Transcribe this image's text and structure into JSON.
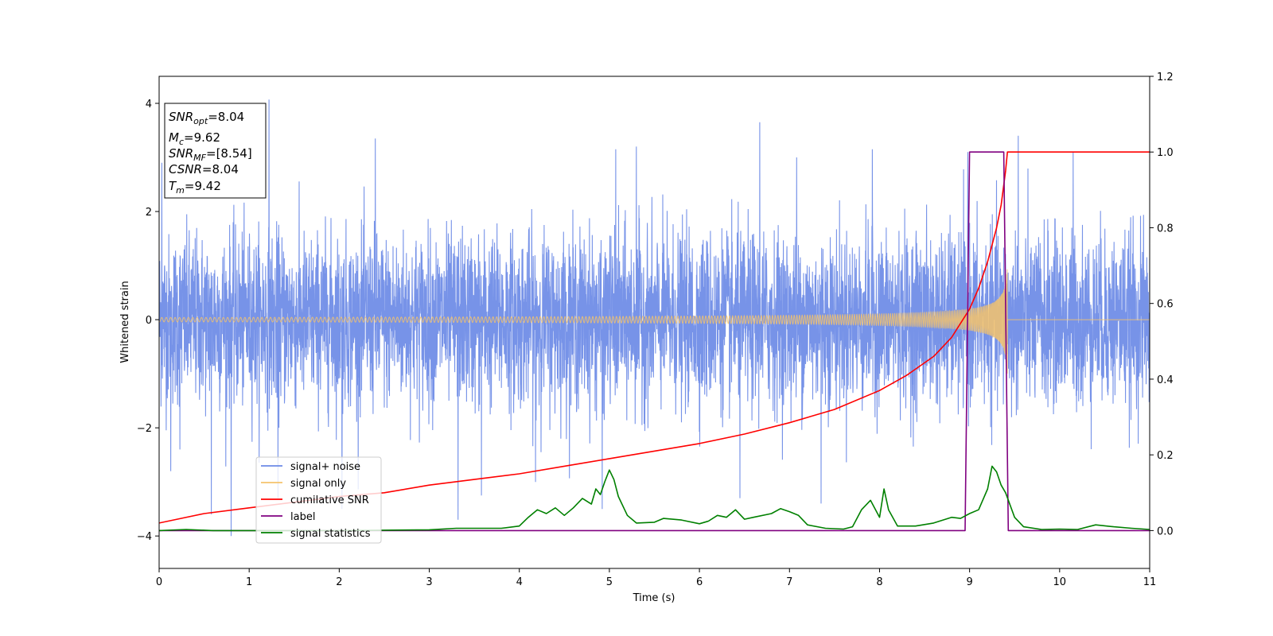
{
  "chart_data": {
    "type": "line",
    "xlabel": "Time (s)",
    "ylabel": "Whitened strain",
    "xlim": [
      0,
      11
    ],
    "ylim": [
      -4.6,
      4.5
    ],
    "y2lim": [
      -0.1,
      1.2
    ],
    "x_ticks": [
      0,
      1,
      2,
      3,
      4,
      5,
      6,
      7,
      8,
      9,
      10,
      11
    ],
    "y_ticks": [
      -4,
      -2,
      0,
      2,
      4
    ],
    "y2_ticks": [
      0.0,
      0.2,
      0.4,
      0.6,
      0.8,
      1.0,
      1.2
    ],
    "grid": false,
    "legend_position": "lower-left",
    "info_box": {
      "lines": [
        {
          "base": "SNR",
          "sub": "opt",
          "rest": "=8.04"
        },
        {
          "base": "M",
          "sub": "c",
          "rest": "=9.62"
        },
        {
          "base": "SNR",
          "sub": "MF",
          "rest": "=[8.54]"
        },
        {
          "base": "CSNR",
          "sub": "",
          "rest": "=8.04"
        },
        {
          "base": "T",
          "sub": "m",
          "rest": "=9.42"
        }
      ]
    },
    "series": [
      {
        "name": "signal+ noise",
        "axis": "left",
        "color": "#6b8ae6",
        "description_values": {
          "noise_std": 0.78,
          "extrema": {
            "max": 4.07,
            "min": -4.0
          }
        },
        "spikes": [
          [
            0.03,
            2.9
          ],
          [
            0.13,
            -2.8
          ],
          [
            0.23,
            -2.4
          ],
          [
            0.58,
            -3.6
          ],
          [
            0.8,
            -4.0
          ],
          [
            1.22,
            4.07
          ],
          [
            1.32,
            -3.3
          ],
          [
            2.03,
            -3.5
          ],
          [
            2.4,
            3.35
          ],
          [
            3.32,
            -3.7
          ],
          [
            3.58,
            -3.25
          ],
          [
            4.18,
            -3.0
          ],
          [
            4.92,
            -3.5
          ],
          [
            5.07,
            3.15
          ],
          [
            5.3,
            3.2
          ],
          [
            6.45,
            -3.3
          ],
          [
            6.67,
            3.65
          ],
          [
            7.08,
            3.0
          ],
          [
            7.35,
            -3.4
          ],
          [
            7.92,
            3.15
          ],
          [
            8.98,
            3.1
          ],
          [
            9.54,
            3.4
          ],
          [
            10.15,
            3.1
          ]
        ]
      },
      {
        "name": "signal only",
        "axis": "left",
        "color": "#f5c36b",
        "description_values": {
          "amplitude_start": 0.02,
          "amplitude_at_9": 0.2,
          "amplitude_peak": 1.0,
          "merger_time": 9.42
        }
      },
      {
        "name": "cumilative SNR",
        "axis": "right",
        "color": "#ff0000",
        "x": [
          0,
          0.5,
          1,
          1.5,
          2,
          2.5,
          3,
          3.5,
          4,
          4.5,
          5,
          5.5,
          6,
          6.5,
          7,
          7.5,
          8,
          8.3,
          8.6,
          8.8,
          9.0,
          9.1,
          9.2,
          9.3,
          9.35,
          9.4,
          9.42,
          11
        ],
        "values": [
          0.02,
          0.045,
          0.06,
          0.075,
          0.09,
          0.1,
          0.12,
          0.135,
          0.15,
          0.17,
          0.19,
          0.21,
          0.23,
          0.255,
          0.285,
          0.32,
          0.37,
          0.41,
          0.46,
          0.51,
          0.585,
          0.64,
          0.71,
          0.8,
          0.86,
          0.95,
          1.0,
          1.0
        ]
      },
      {
        "name": "label",
        "axis": "right",
        "color": "#800080",
        "x": [
          0,
          8.95,
          9.0,
          9.38,
          9.43,
          11
        ],
        "values": [
          0.0,
          0.0,
          1.0,
          1.0,
          0.0,
          0.0
        ]
      },
      {
        "name": "signal statistics",
        "axis": "right",
        "color": "#008000",
        "x": [
          0,
          0.3,
          0.6,
          1.0,
          2.0,
          3.0,
          3.3,
          3.8,
          4.0,
          4.1,
          4.2,
          4.3,
          4.4,
          4.5,
          4.6,
          4.7,
          4.8,
          4.85,
          4.9,
          4.95,
          5.0,
          5.05,
          5.1,
          5.2,
          5.3,
          5.5,
          5.6,
          5.8,
          6.0,
          6.1,
          6.2,
          6.3,
          6.4,
          6.5,
          6.6,
          6.8,
          6.9,
          7.0,
          7.1,
          7.2,
          7.4,
          7.6,
          7.7,
          7.8,
          7.9,
          8.0,
          8.05,
          8.1,
          8.2,
          8.4,
          8.6,
          8.8,
          8.9,
          9.0,
          9.1,
          9.2,
          9.25,
          9.3,
          9.35,
          9.4,
          9.5,
          9.6,
          9.8,
          10.0,
          10.2,
          10.4,
          10.6,
          10.8,
          11
        ],
        "values": [
          0.0,
          0.003,
          0.0,
          0.0,
          0.0,
          0.002,
          0.006,
          0.006,
          0.012,
          0.035,
          0.055,
          0.045,
          0.06,
          0.04,
          0.06,
          0.085,
          0.07,
          0.11,
          0.095,
          0.13,
          0.16,
          0.135,
          0.09,
          0.04,
          0.02,
          0.022,
          0.032,
          0.028,
          0.018,
          0.025,
          0.04,
          0.035,
          0.055,
          0.03,
          0.035,
          0.045,
          0.058,
          0.05,
          0.04,
          0.015,
          0.006,
          0.004,
          0.01,
          0.055,
          0.08,
          0.035,
          0.11,
          0.055,
          0.012,
          0.012,
          0.02,
          0.035,
          0.032,
          0.045,
          0.055,
          0.11,
          0.17,
          0.155,
          0.12,
          0.1,
          0.035,
          0.01,
          0.003,
          0.004,
          0.003,
          0.015,
          0.01,
          0.006,
          0.003
        ]
      }
    ]
  }
}
